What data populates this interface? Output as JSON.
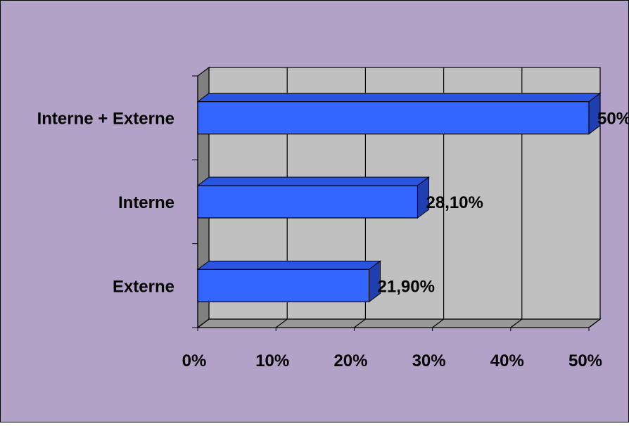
{
  "colors": {
    "background": "#b3a2c7",
    "plot_back": "#c0c0c0",
    "plot_floor": "#999999",
    "plot_side": "#808080",
    "bar_front": "#3366ff",
    "bar_top": "#2a55e0",
    "bar_side": "#1f3fb0",
    "outline": "#000000"
  },
  "chart_data": {
    "type": "bar",
    "orientation": "horizontal",
    "style": "3d",
    "categories": [
      "Interne + Externe",
      "Interne",
      "Externe"
    ],
    "values": [
      50,
      28.1,
      21.9
    ],
    "data_labels": [
      "50%",
      "28,10%",
      "21,90%"
    ],
    "x_ticks": [
      "0%",
      "10%",
      "20%",
      "30%",
      "40%",
      "50%"
    ],
    "xlim": [
      0,
      50
    ],
    "grid": true,
    "legend": false,
    "title": "",
    "xlabel": "",
    "ylabel": ""
  }
}
